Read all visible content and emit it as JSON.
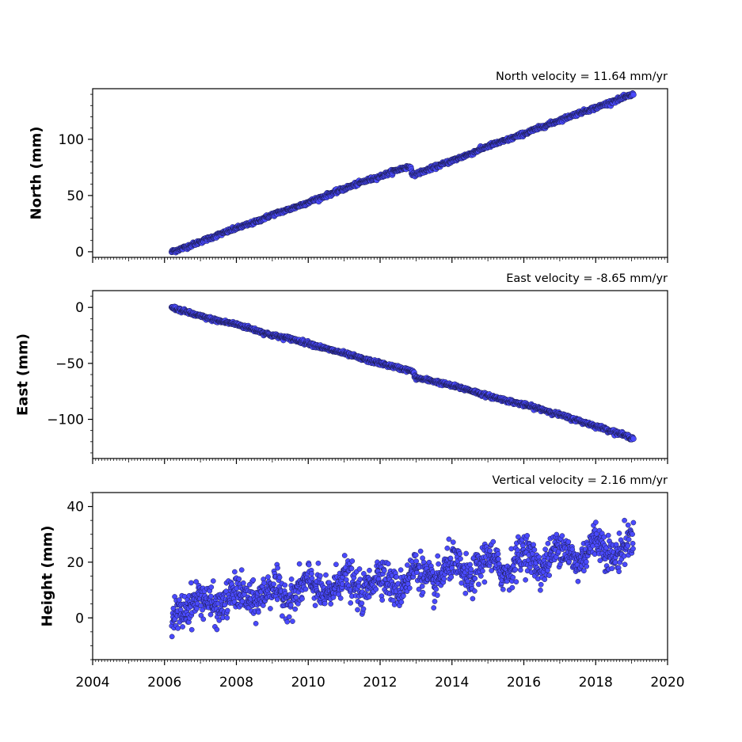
{
  "chart_data": [
    {
      "type": "scatter",
      "title": "North velocity = 11.64 mm/yr",
      "ylabel": "North (mm)",
      "xlim": [
        2004,
        2020
      ],
      "ylim": [
        -5,
        145
      ],
      "yticks": [
        0,
        50,
        100
      ],
      "ytick_labels": [
        "0",
        "50",
        "100"
      ],
      "x_data_range": [
        2006.2,
        2019.05
      ],
      "points": [
        [
          2006.2,
          0
        ],
        [
          2006.5,
          3
        ],
        [
          2007.0,
          9
        ],
        [
          2007.5,
          15
        ],
        [
          2008.0,
          21
        ],
        [
          2008.5,
          26
        ],
        [
          2009.0,
          33
        ],
        [
          2009.5,
          38
        ],
        [
          2010.0,
          44
        ],
        [
          2010.5,
          50
        ],
        [
          2011.0,
          56
        ],
        [
          2011.5,
          62
        ],
        [
          2012.0,
          67
        ],
        [
          2012.5,
          73
        ],
        [
          2012.85,
          76
        ],
        [
          2012.9,
          68
        ],
        [
          2013.5,
          75
        ],
        [
          2014.0,
          81
        ],
        [
          2014.5,
          87
        ],
        [
          2015.0,
          94
        ],
        [
          2015.5,
          99
        ],
        [
          2016.0,
          105
        ],
        [
          2016.5,
          111
        ],
        [
          2017.0,
          117
        ],
        [
          2017.5,
          123
        ],
        [
          2018.0,
          128
        ],
        [
          2018.5,
          134
        ],
        [
          2019.05,
          140
        ]
      ],
      "color": "#4a4aff"
    },
    {
      "type": "scatter",
      "title": "East velocity = -8.65 mm/yr",
      "ylabel": "East (mm)",
      "xlim": [
        2004,
        2020
      ],
      "ylim": [
        -135,
        15
      ],
      "yticks": [
        0,
        -50,
        -100
      ],
      "ytick_labels": [
        "0",
        "−50",
        "−100"
      ],
      "x_data_range": [
        2006.2,
        2019.05
      ],
      "points": [
        [
          2006.2,
          0
        ],
        [
          2006.5,
          -3
        ],
        [
          2007.0,
          -8
        ],
        [
          2007.5,
          -12
        ],
        [
          2008.0,
          -15
        ],
        [
          2008.5,
          -20
        ],
        [
          2009.0,
          -25
        ],
        [
          2009.5,
          -28
        ],
        [
          2010.0,
          -32
        ],
        [
          2010.5,
          -37
        ],
        [
          2011.0,
          -41
        ],
        [
          2011.5,
          -46
        ],
        [
          2012.0,
          -50
        ],
        [
          2012.5,
          -54
        ],
        [
          2012.9,
          -57
        ],
        [
          2013.0,
          -63
        ],
        [
          2013.5,
          -66
        ],
        [
          2014.0,
          -70
        ],
        [
          2014.5,
          -74
        ],
        [
          2015.0,
          -79
        ],
        [
          2015.5,
          -83
        ],
        [
          2016.0,
          -87
        ],
        [
          2016.5,
          -91
        ],
        [
          2017.0,
          -96
        ],
        [
          2017.5,
          -101
        ],
        [
          2018.0,
          -106
        ],
        [
          2018.5,
          -111
        ],
        [
          2019.05,
          -117
        ]
      ],
      "color": "#4a4aff"
    },
    {
      "type": "scatter",
      "title": "Vertical velocity = 2.16 mm/yr",
      "ylabel": "Height (mm)",
      "xlim": [
        2004,
        2020
      ],
      "ylim": [
        -15,
        45
      ],
      "yticks": [
        0,
        20,
        40
      ],
      "ytick_labels": [
        "0",
        "20",
        "40"
      ],
      "xticks": [
        2004,
        2006,
        2008,
        2010,
        2012,
        2014,
        2016,
        2018,
        2020
      ],
      "xtick_labels": [
        "2004",
        "2006",
        "2008",
        "2010",
        "2012",
        "2014",
        "2016",
        "2018",
        "2020"
      ],
      "x_data_range": [
        2006.2,
        2019.05
      ],
      "points": [
        [
          2006.2,
          0
        ],
        [
          2006.5,
          2
        ],
        [
          2007.0,
          8
        ],
        [
          2007.5,
          3
        ],
        [
          2008.0,
          10
        ],
        [
          2008.5,
          5
        ],
        [
          2009.0,
          12
        ],
        [
          2009.5,
          6
        ],
        [
          2010.0,
          14
        ],
        [
          2010.5,
          7
        ],
        [
          2011.0,
          16
        ],
        [
          2011.5,
          8
        ],
        [
          2012.0,
          17
        ],
        [
          2012.5,
          9
        ],
        [
          2013.0,
          19
        ],
        [
          2013.5,
          11
        ],
        [
          2014.0,
          21
        ],
        [
          2014.5,
          13
        ],
        [
          2015.0,
          23
        ],
        [
          2015.5,
          15
        ],
        [
          2016.0,
          25
        ],
        [
          2016.5,
          17
        ],
        [
          2017.0,
          27
        ],
        [
          2017.5,
          19
        ],
        [
          2018.0,
          29
        ],
        [
          2018.5,
          21
        ],
        [
          2019.05,
          30
        ]
      ],
      "color": "#4a4aff"
    }
  ]
}
